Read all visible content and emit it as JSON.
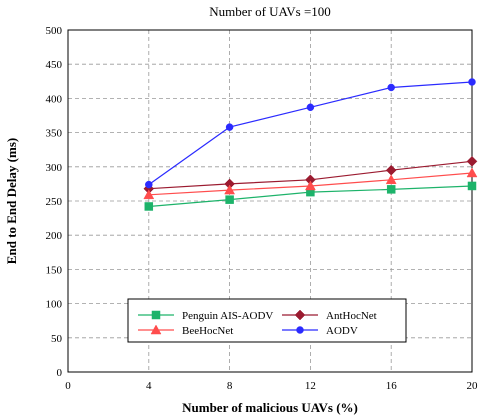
{
  "chart_data": {
    "type": "line",
    "title": "Number of UAVs =100",
    "xlabel": "Number of malicious UAVs (%)",
    "ylabel": "End to End Delay (ms)",
    "x": [
      4,
      8,
      12,
      16,
      20
    ],
    "xlim": [
      0,
      20
    ],
    "ylim": [
      0,
      500
    ],
    "xticks": [
      0,
      4,
      8,
      12,
      16,
      20
    ],
    "yticks": [
      0,
      50,
      100,
      150,
      200,
      250,
      300,
      350,
      400,
      450,
      500
    ],
    "grid": true,
    "legend_position": "bottom-center",
    "series": [
      {
        "name": "Penguin AIS-AODV",
        "color": "#1db36a",
        "marker": "square",
        "values": [
          242,
          252,
          263,
          267,
          272
        ]
      },
      {
        "name": "AntHocNet",
        "color": "#9b1b30",
        "marker": "diamond",
        "values": [
          268,
          275,
          281,
          295,
          308
        ]
      },
      {
        "name": "BeeHocNet",
        "color": "#ff4d4d",
        "marker": "triangle",
        "values": [
          259,
          266,
          272,
          281,
          291
        ]
      },
      {
        "name": "AODV",
        "color": "#2b2bff",
        "marker": "circle",
        "values": [
          274,
          358,
          387,
          416,
          424
        ]
      }
    ]
  }
}
